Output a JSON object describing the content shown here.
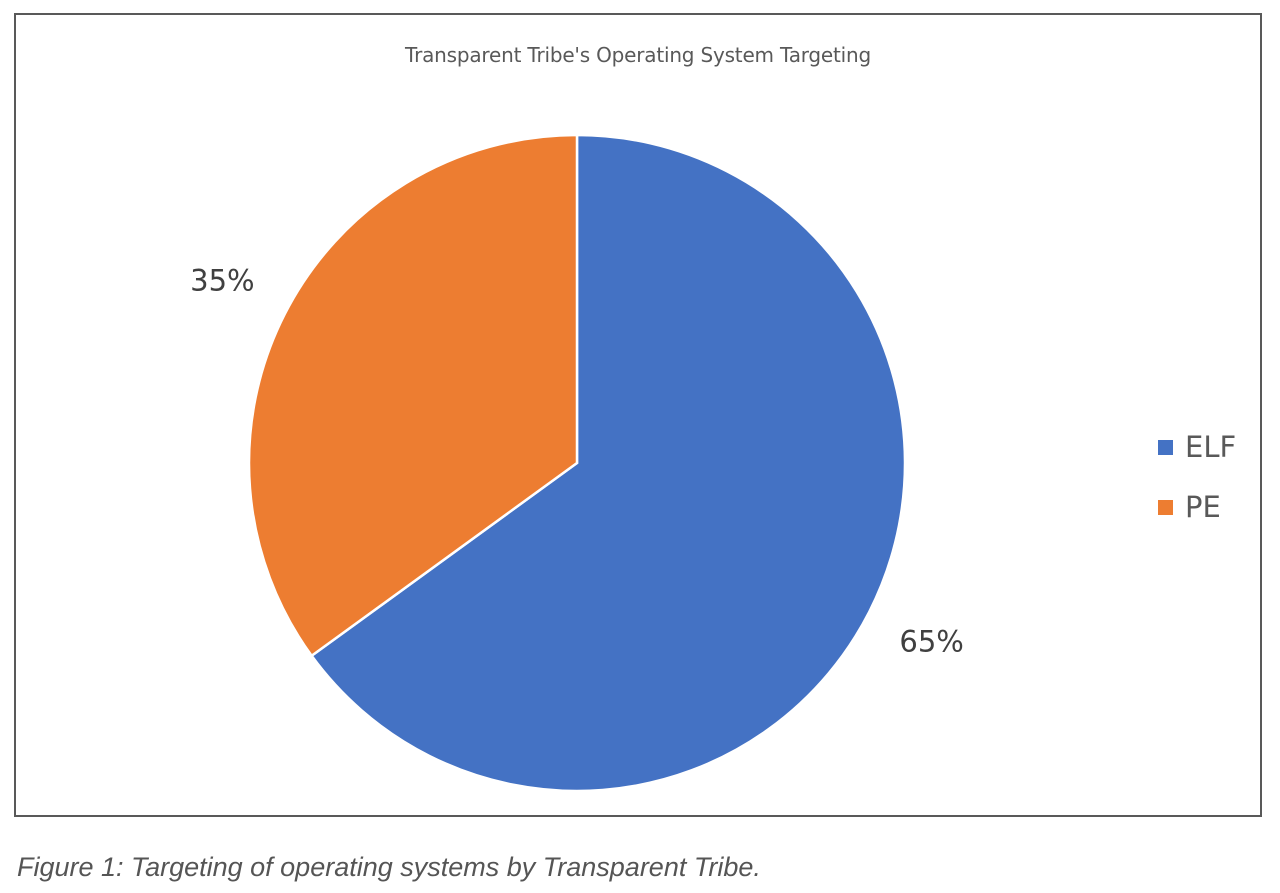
{
  "chart_data": {
    "type": "pie",
    "title": "Transparent Tribe's Operating System Targeting",
    "categories": [
      "ELF",
      "PE"
    ],
    "values": [
      65,
      35
    ],
    "labels": [
      "65%",
      "35%"
    ],
    "colors": [
      "#4472C4",
      "#ED7D31"
    ],
    "legend_placement": "right"
  },
  "caption": "Figure 1: Targeting of operating systems by Transparent Tribe."
}
